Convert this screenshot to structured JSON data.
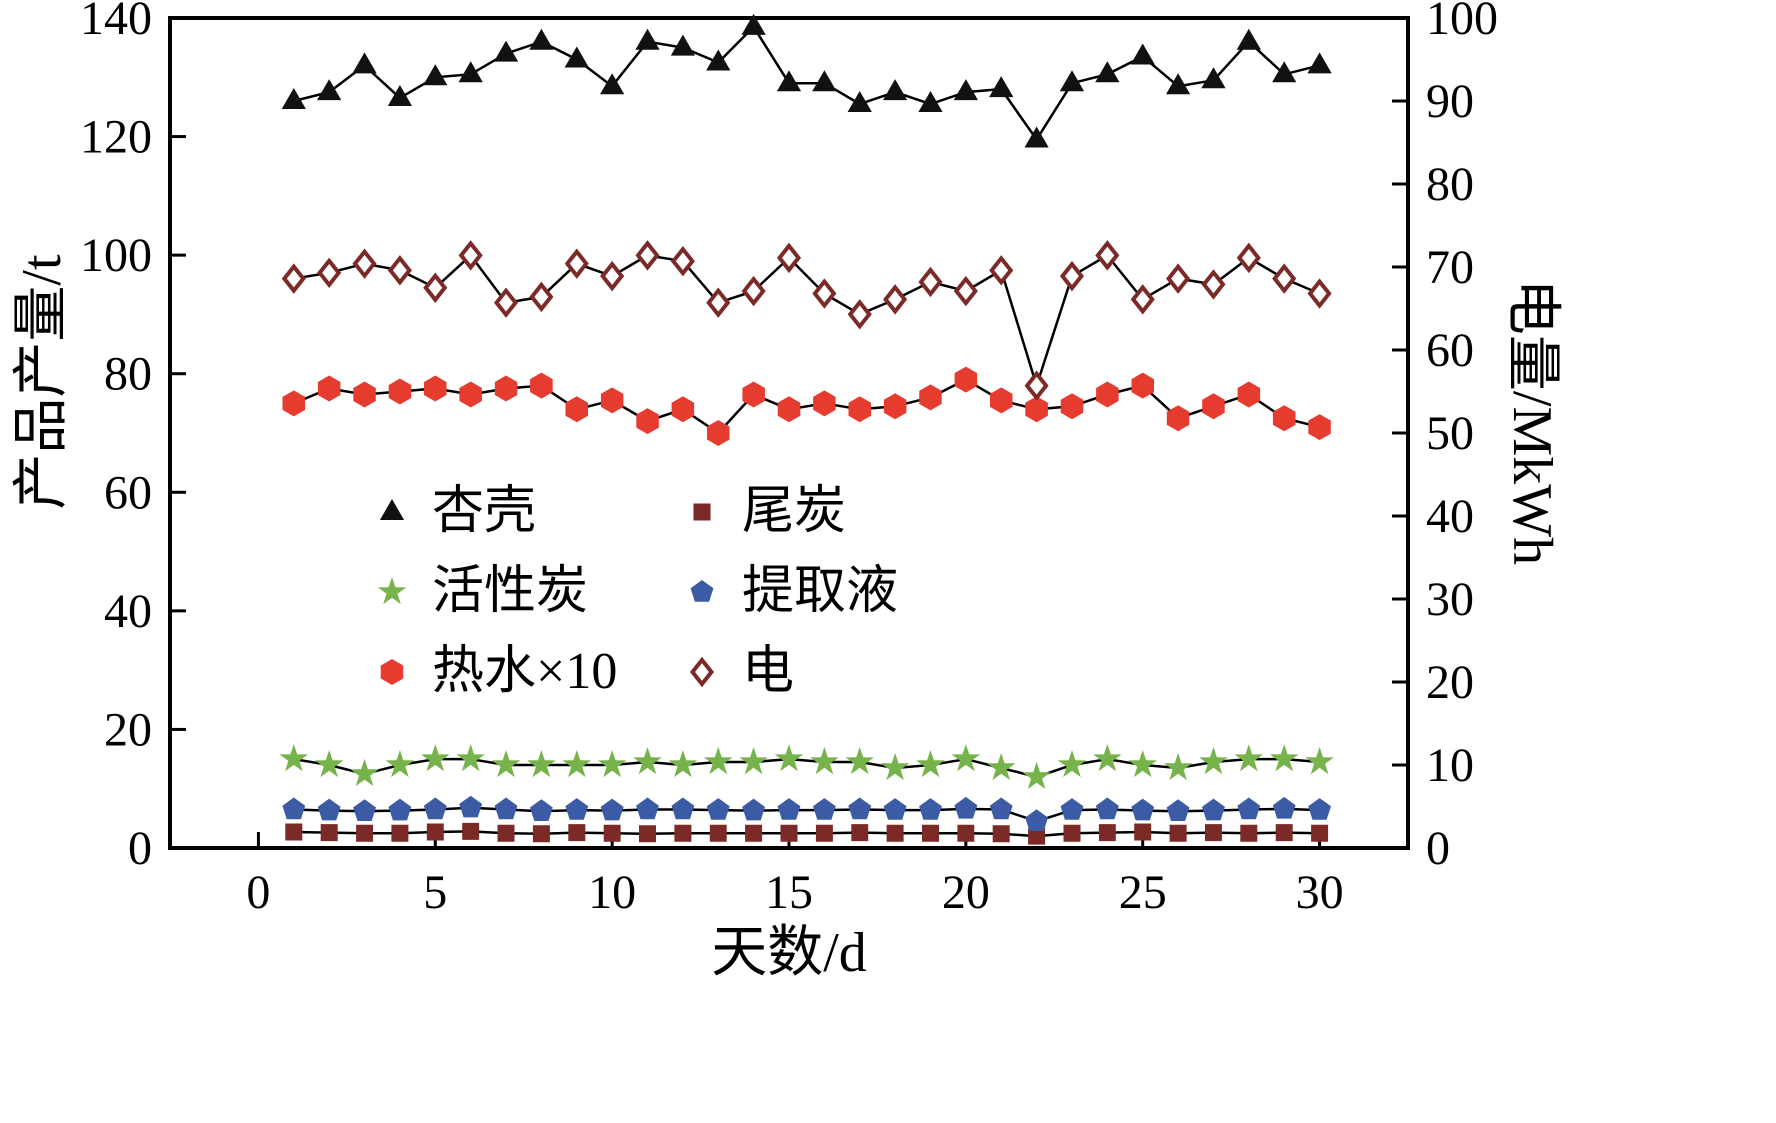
{
  "chart_data": {
    "type": "line",
    "title": "",
    "xlabel": "天数/d",
    "ylabel_left": "产品产量/t",
    "ylabel_right": "电量/MkWh",
    "x_ticks": [
      0,
      5,
      10,
      15,
      20,
      25,
      30
    ],
    "y_left_ticks": [
      0,
      20,
      40,
      60,
      80,
      100,
      120,
      140
    ],
    "y_right_ticks": [
      0,
      10,
      20,
      30,
      40,
      50,
      60,
      70,
      80,
      90,
      100
    ],
    "x_range": [
      -2.5,
      32.5
    ],
    "y_left_range": [
      0,
      140
    ],
    "y_right_range": [
      0,
      100
    ],
    "grid": false,
    "legend_position": "inside-center-left",
    "x": [
      1,
      2,
      3,
      4,
      5,
      6,
      7,
      8,
      9,
      10,
      11,
      12,
      13,
      14,
      15,
      16,
      17,
      18,
      19,
      20,
      21,
      22,
      23,
      24,
      25,
      26,
      27,
      28,
      29,
      30
    ],
    "series": [
      {
        "id": "apricot-shell",
        "name": "杏壳",
        "marker": "triangle",
        "color": "#111111",
        "axis": "left",
        "values": [
          126,
          127.5,
          132,
          126.5,
          130,
          130.5,
          134,
          136,
          133,
          128.5,
          136,
          135,
          132.5,
          138.5,
          129,
          129,
          125.5,
          127.5,
          125.5,
          127.5,
          128,
          119.5,
          129,
          130.5,
          133.5,
          128.5,
          129.5,
          136,
          130.5,
          132
        ]
      },
      {
        "id": "tail-char",
        "name": "尾炭",
        "marker": "square",
        "color": "#7b2a27",
        "axis": "left",
        "values": [
          2.7,
          2.6,
          2.5,
          2.5,
          2.7,
          2.8,
          2.5,
          2.4,
          2.6,
          2.5,
          2.4,
          2.5,
          2.5,
          2.5,
          2.5,
          2.5,
          2.6,
          2.5,
          2.5,
          2.5,
          2.4,
          2.0,
          2.5,
          2.6,
          2.7,
          2.5,
          2.6,
          2.5,
          2.6,
          2.5
        ]
      },
      {
        "id": "activated-carbon",
        "name": "活性炭",
        "marker": "star",
        "color": "#77b34b",
        "axis": "left",
        "values": [
          15,
          14,
          12.5,
          14,
          15,
          15,
          14,
          14,
          14,
          14,
          14.5,
          14,
          14.5,
          14.5,
          15,
          14.5,
          14.5,
          13.5,
          14,
          15,
          13.5,
          12,
          14,
          15,
          14,
          13.5,
          14.5,
          15,
          15,
          14.5
        ]
      },
      {
        "id": "extract-liquid",
        "name": "提取液",
        "marker": "pentagon",
        "color": "#3c5ba5",
        "axis": "left",
        "values": [
          6.5,
          6.3,
          6.2,
          6.3,
          6.5,
          6.8,
          6.5,
          6.2,
          6.4,
          6.3,
          6.5,
          6.5,
          6.4,
          6.3,
          6.4,
          6.4,
          6.5,
          6.4,
          6.4,
          6.6,
          6.5,
          4.5,
          6.4,
          6.5,
          6.3,
          6.2,
          6.3,
          6.5,
          6.6,
          6.4
        ]
      },
      {
        "id": "hot-water",
        "name": "热水×10",
        "marker": "hexagon",
        "color": "#e63c30",
        "axis": "left",
        "values": [
          75,
          77.5,
          76.5,
          77,
          77.5,
          76.5,
          77.5,
          78,
          74,
          75.5,
          72,
          74,
          70,
          76.5,
          74,
          75,
          74,
          74.5,
          76,
          79,
          75.5,
          74,
          74.5,
          76.5,
          78,
          72.5,
          74.5,
          76.5,
          72.5,
          71
        ]
      },
      {
        "id": "electricity",
        "name": "电",
        "marker": "diamond-open",
        "color": "#7b2a27",
        "axis": "right",
        "values": [
          68.6,
          69.3,
          70.4,
          69.6,
          67.5,
          71.4,
          65.7,
          66.4,
          70.4,
          68.9,
          71.4,
          70.7,
          65.7,
          67.1,
          71.1,
          66.8,
          64.3,
          66.1,
          68.2,
          67.1,
          69.6,
          55.7,
          68.9,
          71.4,
          66.1,
          68.6,
          67.9,
          71.1,
          68.6,
          66.8
        ]
      }
    ],
    "legend": [
      {
        "label": "杏壳",
        "series": "apricot-shell"
      },
      {
        "label": "活性炭",
        "series": "activated-carbon"
      },
      {
        "label": "热水×10",
        "series": "hot-water"
      },
      {
        "label": "尾炭",
        "series": "tail-char"
      },
      {
        "label": "提取液",
        "series": "extract-liquid"
      },
      {
        "label": "电",
        "series": "electricity"
      }
    ]
  }
}
